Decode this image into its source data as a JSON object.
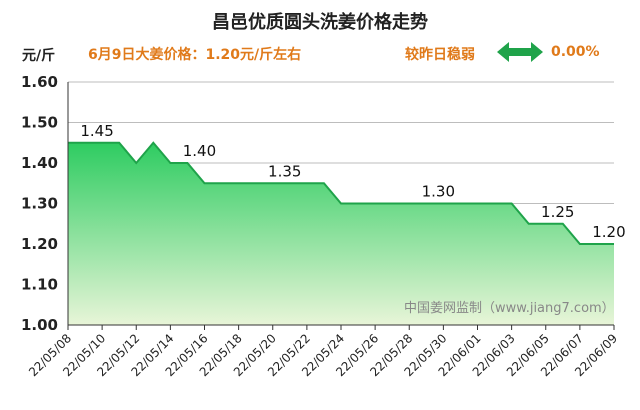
{
  "header": {
    "title": "昌邑优质圆头洗姜价格走势",
    "unit": "元/斤",
    "price_note": "6月9日大姜价格：1.20元/斤左右",
    "trend": "较昨日稳弱",
    "change": "0.00%",
    "arrow_color": "#1fa34a"
  },
  "chart_data": {
    "type": "area",
    "title": "昌邑优质圆头洗姜价格走势",
    "ylabel": "元/斤",
    "ylim": [
      1.0,
      1.6
    ],
    "yticks": [
      "1.60",
      "1.50",
      "1.40",
      "1.30",
      "1.20",
      "1.10",
      "1.00"
    ],
    "grid": true,
    "x_tick_labels": [
      "22/05/08",
      "22/05/10",
      "22/05/12",
      "22/05/14",
      "22/05/16",
      "22/05/18",
      "22/05/20",
      "22/05/22",
      "22/05/24",
      "22/05/26",
      "22/05/28",
      "22/05/30",
      "22/06/01",
      "22/06/03",
      "22/06/05",
      "22/06/07",
      "22/06/09"
    ],
    "series": [
      {
        "x": [
          "22/05/08",
          "22/05/09",
          "22/05/10",
          "22/05/11",
          "22/05/12",
          "22/05/13",
          "22/05/14",
          "22/05/15",
          "22/05/16",
          "22/05/17",
          "22/05/18",
          "22/05/19",
          "22/05/20",
          "22/05/21",
          "22/05/22",
          "22/05/23",
          "22/05/24",
          "22/05/25",
          "22/05/26",
          "22/05/27",
          "22/05/28",
          "22/05/29",
          "22/05/30",
          "22/05/31",
          "22/06/01",
          "22/06/02",
          "22/06/03",
          "22/06/04",
          "22/06/05",
          "22/06/06",
          "22/06/07",
          "22/06/08",
          "22/06/09"
        ],
        "values": [
          1.45,
          1.45,
          1.45,
          1.45,
          1.4,
          1.45,
          1.4,
          1.4,
          1.35,
          1.35,
          1.35,
          1.35,
          1.35,
          1.35,
          1.35,
          1.35,
          1.3,
          1.3,
          1.3,
          1.3,
          1.3,
          1.3,
          1.3,
          1.3,
          1.3,
          1.3,
          1.3,
          1.25,
          1.25,
          1.25,
          1.2,
          1.2,
          1.2
        ]
      }
    ],
    "data_labels": [
      {
        "x": "22/05/09",
        "text": "1.45"
      },
      {
        "x": "22/05/15",
        "text": "1.40"
      },
      {
        "x": "22/05/20",
        "text": "1.35"
      },
      {
        "x": "22/05/29",
        "text": "1.30"
      },
      {
        "x": "22/06/05",
        "text": "1.25"
      },
      {
        "x": "22/06/08",
        "text": "1.20"
      }
    ],
    "watermark": "中国姜网监制（www.jiang7.com）",
    "colors": {
      "fill_top": "#2ecc61",
      "fill_bottom": "#e8f5d8",
      "line": "#1fa34a",
      "grid": "#bdbdbd"
    }
  }
}
